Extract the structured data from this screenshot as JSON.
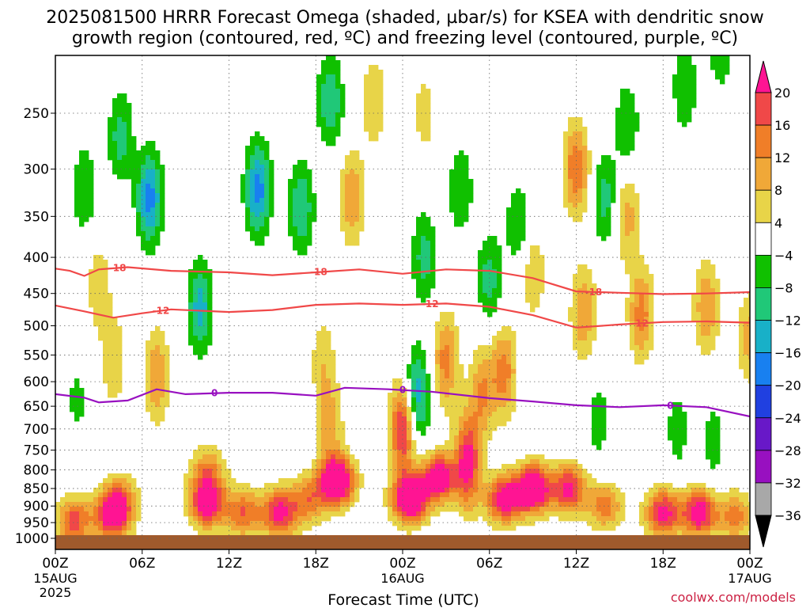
{
  "chart_data": {
    "type": "heatmap",
    "title_lines": [
      "2025081500 HRRR Forecast Omega (shaded, µbar/s) for KSEA with dendritic snow",
      "growth region (contoured, red, ºC) and freezing level (contoured, purple, ºC)"
    ],
    "xlabel": "Forecast Time (UTC)",
    "ylabel": "",
    "x_ticks": [
      "00Z",
      "06Z",
      "12Z",
      "18Z",
      "00Z",
      "06Z",
      "12Z",
      "18Z",
      "00Z"
    ],
    "x_tick_hours": [
      0,
      6,
      12,
      18,
      24,
      30,
      36,
      42,
      48
    ],
    "x_date_labels": [
      {
        "hour": 0,
        "lines": [
          "15AUG",
          "2025"
        ]
      },
      {
        "hour": 24,
        "lines": [
          "16AUG"
        ]
      },
      {
        "hour": 48,
        "lines": [
          "17AUG"
        ]
      }
    ],
    "xlim": [
      0,
      48
    ],
    "y_ticks": [
      250,
      300,
      350,
      400,
      450,
      500,
      550,
      600,
      650,
      700,
      750,
      800,
      850,
      900,
      950,
      1000
    ],
    "ylim": [
      200,
      1000
    ],
    "y_scale": "log-pressure",
    "grid": true,
    "colorbar": {
      "levels": [
        -36,
        -32,
        -28,
        -24,
        -20,
        -16,
        -12,
        -8,
        -4,
        4,
        8,
        12,
        16,
        20
      ],
      "labels": [
        "20",
        "16",
        "12",
        "8",
        "4",
        "−4",
        "−8",
        "−12",
        "−16",
        "−20",
        "−24",
        "−28",
        "−32",
        "−36"
      ],
      "colors": {
        "gt20": "#ff1493",
        "16_20": "#f04848",
        "12_16": "#f07e28",
        "8_12": "#f0a838",
        "4_8": "#e8d448",
        "m4_4": "#ffffff",
        "m8_m4": "#10c000",
        "m12_m8": "#20c878",
        "m16_m12": "#18b0c8",
        "m20_m16": "#1880f0",
        "m24_m20": "#2040e0",
        "m28_m24": "#6818c8",
        "m32_m28": "#9810c0",
        "m36_m32": "#a8a8a8",
        "lt36": "#000000"
      }
    },
    "omega_features": [
      {
        "h": 1.3,
        "p": 945,
        "v": 18
      },
      {
        "h": 4,
        "p": 925,
        "v": 26
      },
      {
        "h": 4.5,
        "p": 870,
        "v": 9
      },
      {
        "h": 10.5,
        "p": 890,
        "v": 26
      },
      {
        "h": 10.5,
        "p": 800,
        "v": 12
      },
      {
        "h": 13,
        "p": 920,
        "v": 16
      },
      {
        "h": 15.5,
        "p": 920,
        "v": 22
      },
      {
        "h": 17.5,
        "p": 880,
        "v": 14
      },
      {
        "h": 19.5,
        "p": 830,
        "v": 30
      },
      {
        "h": 19,
        "p": 700,
        "v": 10
      },
      {
        "h": 24.5,
        "p": 880,
        "v": 30
      },
      {
        "h": 24,
        "p": 700,
        "v": 22
      },
      {
        "h": 26.5,
        "p": 820,
        "v": 26
      },
      {
        "h": 28.5,
        "p": 780,
        "v": 22
      },
      {
        "h": 31,
        "p": 880,
        "v": 24
      },
      {
        "h": 33,
        "p": 850,
        "v": 30
      },
      {
        "h": 35.5,
        "p": 850,
        "v": 22
      },
      {
        "h": 38,
        "p": 900,
        "v": 14
      },
      {
        "h": 42,
        "p": 920,
        "v": 22
      },
      {
        "h": 44.5,
        "p": 920,
        "v": 24
      },
      {
        "h": 47,
        "p": 930,
        "v": 14
      },
      {
        "h": 7,
        "p": 590,
        "v": 12
      },
      {
        "h": 4,
        "p": 560,
        "v": 8
      },
      {
        "h": 3,
        "p": 440,
        "v": 7
      },
      {
        "h": 18.5,
        "p": 560,
        "v": 7
      },
      {
        "h": 20.5,
        "p": 330,
        "v": 12
      },
      {
        "h": 22,
        "p": 240,
        "v": 8
      },
      {
        "h": 27,
        "p": 560,
        "v": 14
      },
      {
        "h": 29.5,
        "p": 620,
        "v": 12
      },
      {
        "h": 31,
        "p": 580,
        "v": 14
      },
      {
        "h": 36,
        "p": 300,
        "v": 16
      },
      {
        "h": 36.5,
        "p": 480,
        "v": 12
      },
      {
        "h": 40.5,
        "p": 480,
        "v": 14
      },
      {
        "h": 39.5,
        "p": 350,
        "v": 10
      },
      {
        "h": 45,
        "p": 470,
        "v": 12
      },
      {
        "h": 48,
        "p": 520,
        "v": 10
      },
      {
        "h": 25.5,
        "p": 250,
        "v": 6
      },
      {
        "h": 33,
        "p": 420,
        "v": 8
      },
      {
        "h": 6.5,
        "p": 330,
        "v": -18
      },
      {
        "h": 4.5,
        "p": 270,
        "v": -10
      },
      {
        "h": 2,
        "p": 320,
        "v": -8
      },
      {
        "h": 10,
        "p": 470,
        "v": -14
      },
      {
        "h": 14,
        "p": 320,
        "v": -18
      },
      {
        "h": 17,
        "p": 340,
        "v": -12
      },
      {
        "h": 19,
        "p": 240,
        "v": -12
      },
      {
        "h": 25,
        "p": 630,
        "v": -16
      },
      {
        "h": 25.5,
        "p": 400,
        "v": -10
      },
      {
        "h": 28,
        "p": 320,
        "v": -8
      },
      {
        "h": 30,
        "p": 430,
        "v": -10
      },
      {
        "h": 32,
        "p": 360,
        "v": -8
      },
      {
        "h": 38,
        "p": 330,
        "v": -10
      },
      {
        "h": 39.5,
        "p": 260,
        "v": -8
      },
      {
        "h": 43.5,
        "p": 230,
        "v": -8
      },
      {
        "h": 46,
        "p": 200,
        "v": -8
      },
      {
        "h": 43,
        "p": 700,
        "v": -6
      },
      {
        "h": 45.5,
        "p": 730,
        "v": -6
      },
      {
        "h": 37.5,
        "p": 680,
        "v": -6
      },
      {
        "h": 1.5,
        "p": 640,
        "v": -5
      }
    ],
    "contours": [
      {
        "name": "-18",
        "color": "#f04848",
        "points": [
          [
            0,
            415
          ],
          [
            1,
            418
          ],
          [
            2,
            425
          ],
          [
            3,
            416
          ],
          [
            5,
            413
          ],
          [
            8,
            418
          ],
          [
            12,
            420
          ],
          [
            15,
            424
          ],
          [
            18,
            420
          ],
          [
            21,
            416
          ],
          [
            24,
            422
          ],
          [
            27,
            416
          ],
          [
            30,
            418
          ],
          [
            33,
            428
          ],
          [
            36,
            447
          ],
          [
            39,
            449
          ],
          [
            42,
            451
          ],
          [
            45,
            450
          ],
          [
            48,
            448
          ]
        ],
        "labels_at": [
          4.3,
          18.2,
          37.2
        ]
      },
      {
        "name": "-12",
        "color": "#f04848",
        "points": [
          [
            0,
            468
          ],
          [
            2,
            477
          ],
          [
            4,
            487
          ],
          [
            6,
            480
          ],
          [
            8,
            474
          ],
          [
            12,
            478
          ],
          [
            15,
            475
          ],
          [
            18,
            467
          ],
          [
            21,
            465
          ],
          [
            24,
            467
          ],
          [
            27,
            465
          ],
          [
            30,
            470
          ],
          [
            33,
            483
          ],
          [
            36,
            503
          ],
          [
            39,
            498
          ],
          [
            42,
            494
          ],
          [
            45,
            493
          ],
          [
            48,
            495
          ]
        ],
        "labels_at": [
          7.3,
          25.9,
          40.4
        ]
      },
      {
        "name": "0",
        "color": "#9810c0",
        "points": [
          [
            0,
            625
          ],
          [
            2,
            632
          ],
          [
            3,
            642
          ],
          [
            5,
            638
          ],
          [
            7,
            615
          ],
          [
            9,
            625
          ],
          [
            12,
            622
          ],
          [
            15,
            622
          ],
          [
            18,
            628
          ],
          [
            20,
            612
          ],
          [
            23,
            615
          ],
          [
            26,
            620
          ],
          [
            30,
            633
          ],
          [
            33,
            640
          ],
          [
            36,
            648
          ],
          [
            39,
            652
          ],
          [
            42,
            648
          ],
          [
            45,
            652
          ],
          [
            48,
            672
          ]
        ],
        "labels_at": [
          11,
          24,
          42.5
        ]
      }
    ]
  },
  "credit": "coolwx.com/models"
}
